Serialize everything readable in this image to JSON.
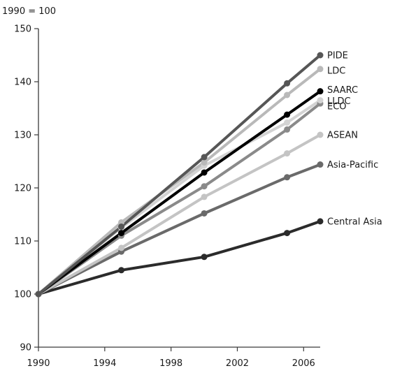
{
  "chart_data": {
    "type": "line",
    "unit_label": "1990 = 100",
    "x": [
      1990,
      1995,
      2000,
      2005,
      2007
    ],
    "xlim": [
      1990,
      2007
    ],
    "ylim": [
      90,
      150
    ],
    "x_ticks": [
      "1990",
      "1994",
      "1998",
      "2002",
      "2006"
    ],
    "y_ticks": [
      "90",
      "100",
      "110",
      "120",
      "130",
      "140",
      "150"
    ],
    "grid": false,
    "legend": "none (labels at line ends)",
    "series": [
      {
        "name": "Central Asia",
        "values": [
          100,
          104.5,
          107,
          111.5,
          113.7
        ],
        "color": "#2b2b2b"
      },
      {
        "name": "Asia-Pacific",
        "values": [
          100,
          108,
          115.2,
          122,
          124.4
        ],
        "color": "#6a6a6a"
      },
      {
        "name": "ASEAN",
        "values": [
          100,
          108.7,
          118.3,
          126.5,
          130
        ],
        "color": "#c4c4c4"
      },
      {
        "name": "ECO",
        "values": [
          100,
          111,
          120.3,
          131,
          135.9
        ],
        "color": "#8a8a8a"
      },
      {
        "name": "LLDC",
        "values": [
          100,
          112.5,
          124.2,
          132.3,
          136.5
        ],
        "color": "#d3d3d3"
      },
      {
        "name": "SAARC",
        "values": [
          100,
          111.5,
          122.9,
          133.8,
          138.2
        ],
        "color": "#000000"
      },
      {
        "name": "LDC",
        "values": [
          100,
          113.5,
          124.8,
          137.5,
          142.4
        ],
        "color": "#b9b9b9"
      },
      {
        "name": "PIDE",
        "values": [
          100,
          112.7,
          125.8,
          139.7,
          145
        ],
        "color": "#565656"
      }
    ]
  }
}
